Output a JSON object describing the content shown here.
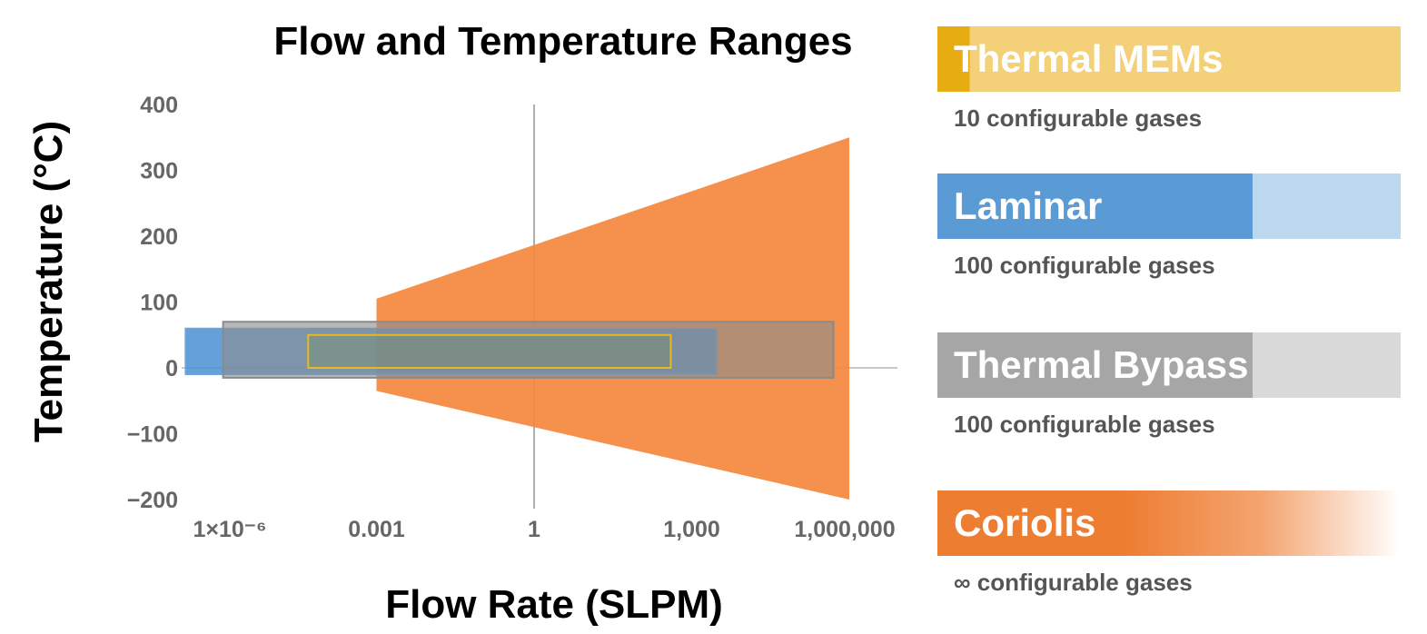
{
  "chart_data": {
    "type": "area",
    "title": "Flow and Temperature Ranges",
    "xlabel": "Flow Rate (SLPM)",
    "ylabel": "Temperature (°C)",
    "x_scale": "log",
    "x_ticks": [
      {
        "value": 1e-06,
        "label": "1×10⁻⁶"
      },
      {
        "value": 0.001,
        "label": "0.001"
      },
      {
        "value": 1,
        "label": "1"
      },
      {
        "value": 1000,
        "label": "1,000"
      },
      {
        "value": 1000000,
        "label": "1,000,000"
      }
    ],
    "y_ticks": [
      {
        "value": 400,
        "label": "400"
      },
      {
        "value": 300,
        "label": "300"
      },
      {
        "value": 200,
        "label": "200"
      },
      {
        "value": 100,
        "label": "100"
      },
      {
        "value": 0,
        "label": "0"
      },
      {
        "value": -100,
        "label": "−100"
      },
      {
        "value": -200,
        "label": "−200"
      }
    ],
    "ylim": [
      -200,
      400
    ],
    "series": [
      {
        "name": "Coriolis",
        "color": "#F4883E",
        "polygon": [
          [
            0.001,
            105
          ],
          [
            1000000,
            350
          ],
          [
            1000000,
            -200
          ],
          [
            0.001,
            -35
          ]
        ]
      },
      {
        "name": "Laminar",
        "color": "#4A8FD4",
        "x_range": [
          2.3e-07,
          3000
        ],
        "y_range": [
          -10,
          60
        ]
      },
      {
        "name": "Thermal Bypass",
        "color": "#8C8C8C",
        "x_range": [
          1.2e-06,
          500000
        ],
        "y_range": [
          -15,
          70
        ]
      },
      {
        "name": "Thermal MEMs",
        "color": "#E8B81E",
        "x_range": [
          5e-05,
          400
        ],
        "y_range": [
          0,
          50
        ]
      }
    ]
  },
  "legend": [
    {
      "name": "Thermal MEMs",
      "subtitle": "10 configurable gases",
      "color": "#E6AC12",
      "light": "#F4D178",
      "fill": 0.07
    },
    {
      "name": "Laminar",
      "subtitle": "100 configurable gases",
      "color": "#5B9BD5",
      "light": "#BDD7EE",
      "fill": 0.68
    },
    {
      "name": "Thermal Bypass",
      "subtitle": "100 configurable gases",
      "color": "#A6A6A6",
      "light": "#D9D9D9",
      "fill": 0.68
    },
    {
      "name": "Coriolis",
      "subtitle": "∞ configurable gases",
      "color": "#ED7D31",
      "light": "#FFFFFF",
      "fill": "gradient"
    }
  ]
}
